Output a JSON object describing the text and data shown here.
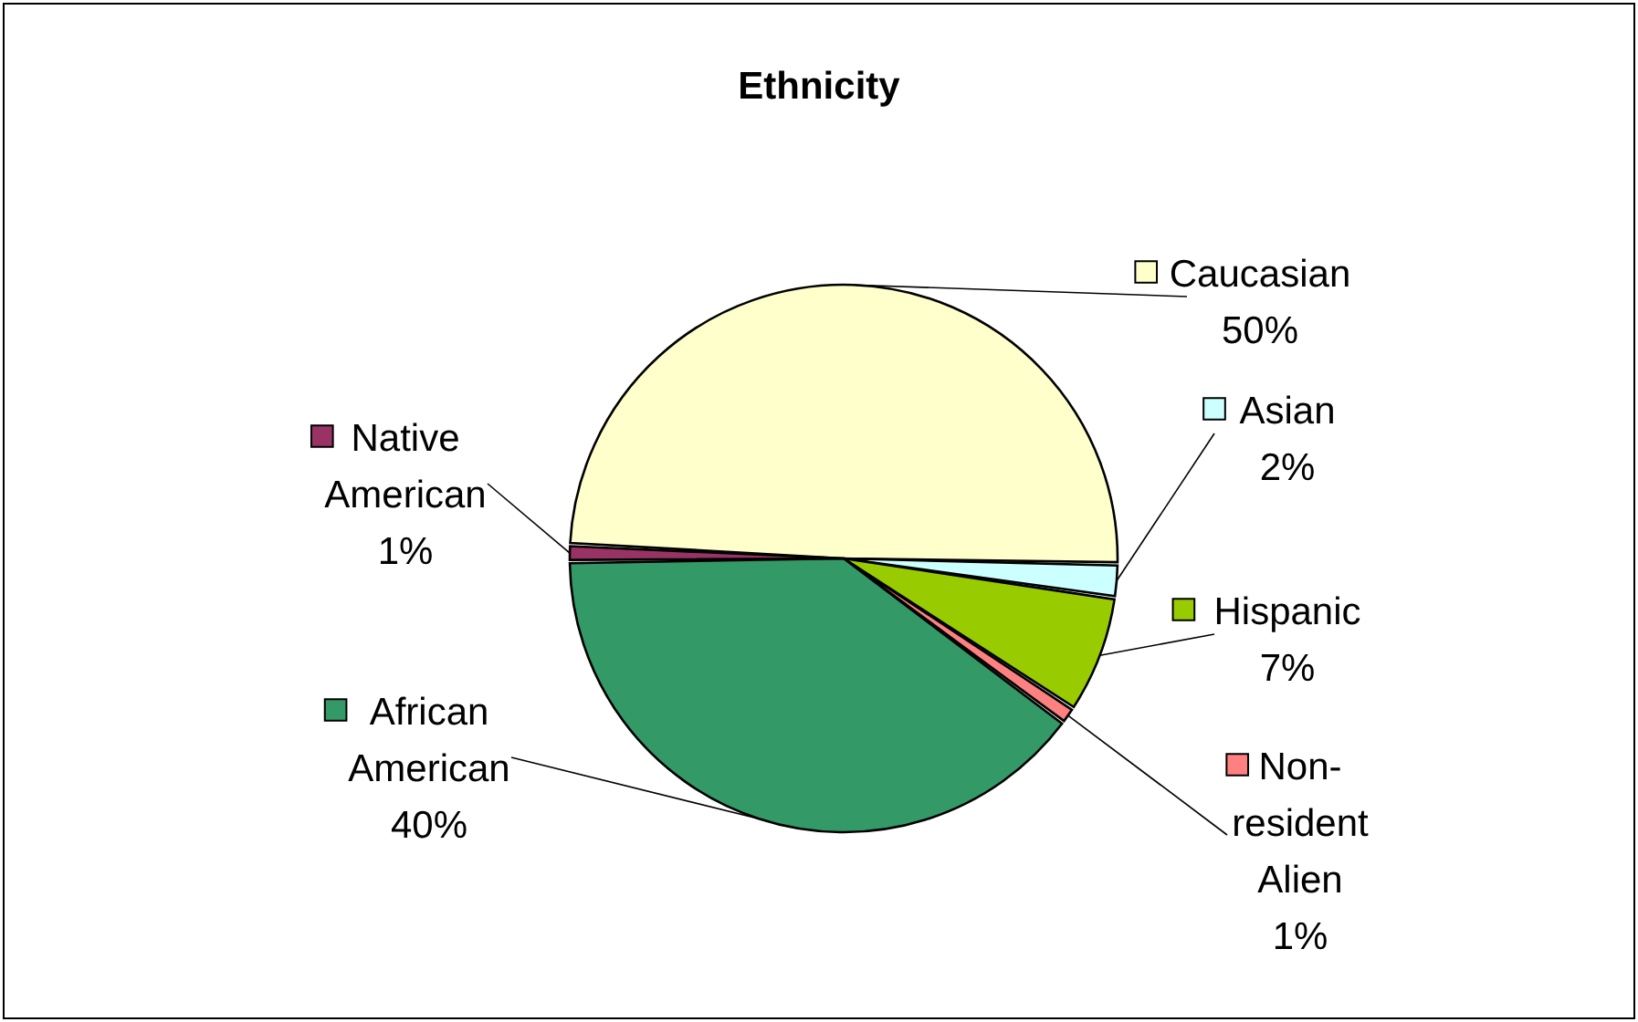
{
  "chart_data": {
    "type": "pie",
    "title": "Ethnicity",
    "categories": [
      "Caucasian",
      "Asian",
      "Hispanic",
      "Non-resident Alien",
      "African American",
      "Native American"
    ],
    "values": [
      50,
      2,
      7,
      1,
      40,
      1
    ],
    "colors": [
      "#ffffcc",
      "#ccffff",
      "#99cc00",
      "#ff8080",
      "#339966",
      "#993366"
    ],
    "value_labels": [
      "50%",
      "2%",
      "7%",
      "1%",
      "40%",
      "1%"
    ],
    "legend": "right"
  }
}
